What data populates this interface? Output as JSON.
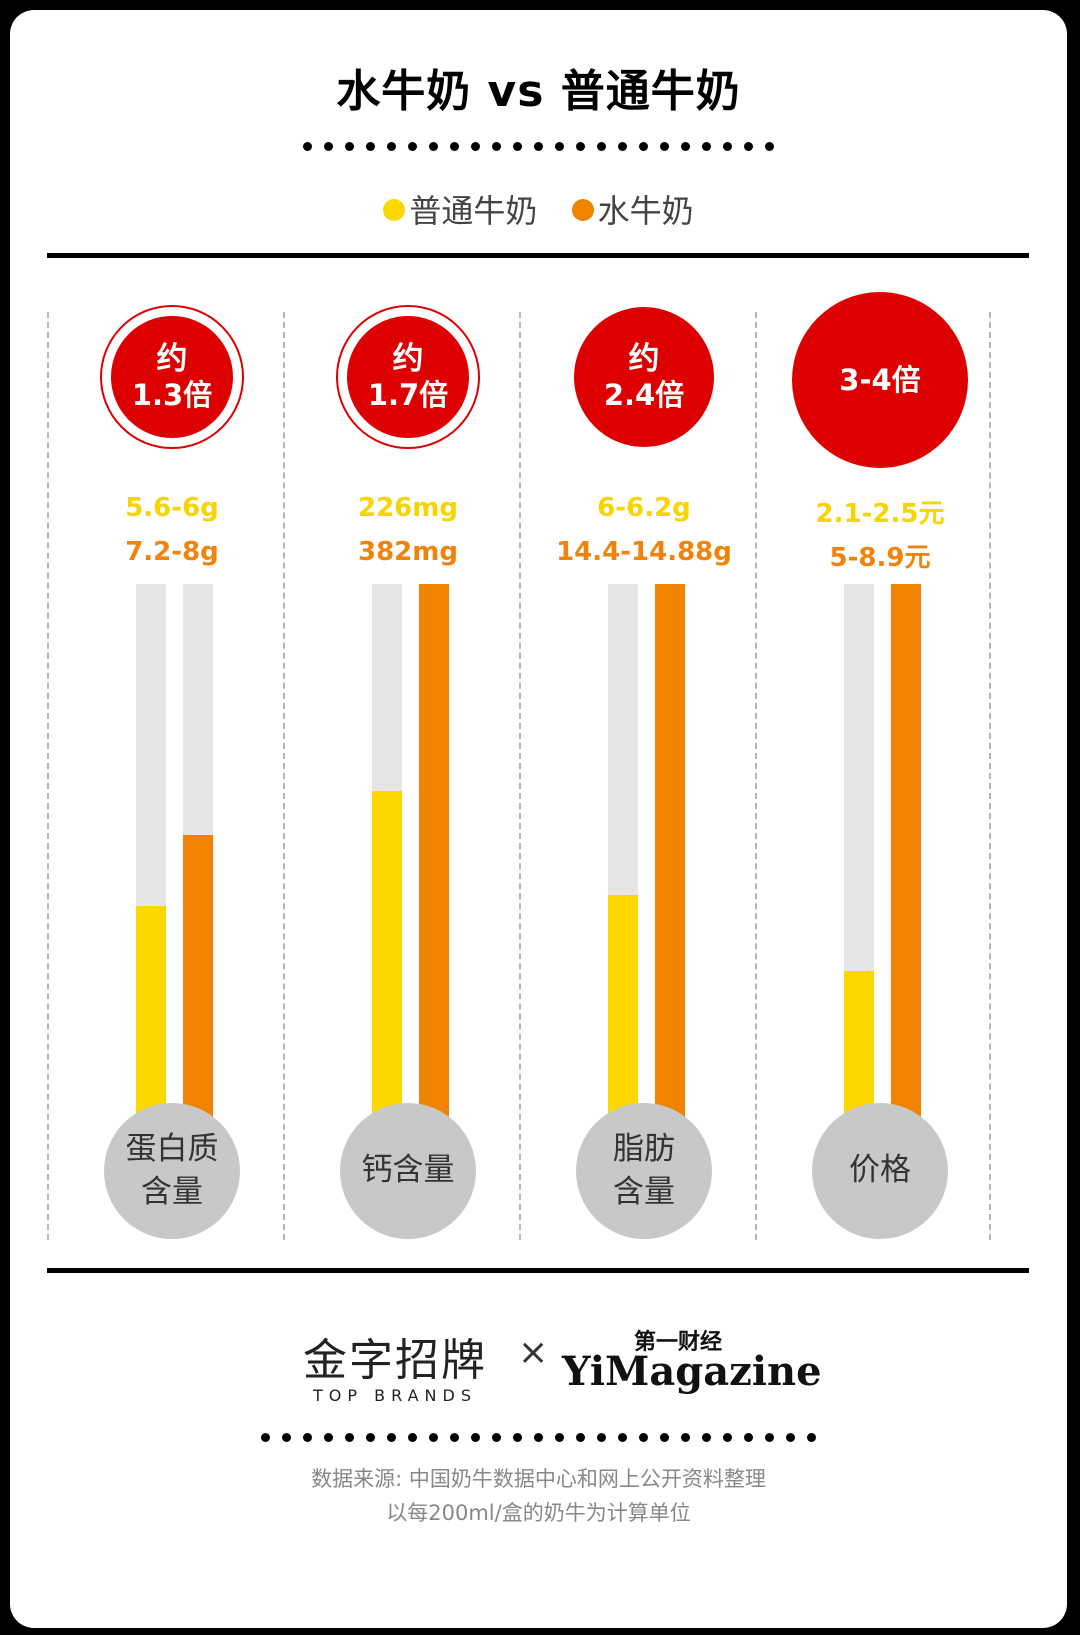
{
  "title": "水牛奶 vs 普通牛奶",
  "legend": [
    {
      "label": "普通牛奶",
      "color": "#fdd800"
    },
    {
      "label": "水牛奶",
      "color": "#f08400"
    }
  ],
  "chart_data": {
    "type": "bar",
    "categories": [
      "蛋白质\n含量",
      "钙含量",
      "脂肪\n含量",
      "价格"
    ],
    "series": [
      {
        "name": "普通牛奶",
        "values": [
          0.41,
          0.62,
          0.43,
          0.29
        ],
        "labels": [
          "5.6-6g",
          "226mg",
          "6-6.2g",
          "2.1-2.5元"
        ]
      },
      {
        "name": "水牛奶",
        "values": [
          0.54,
          1.0,
          1.0,
          1.0
        ],
        "labels": [
          "7.2-8g",
          "382mg",
          "14.4-14.88g",
          "5-8.9元"
        ]
      }
    ],
    "ratios": [
      {
        "line1": "约",
        "line2": "1.3倍"
      },
      {
        "line1": "约",
        "line2": "1.7倍"
      },
      {
        "line1": "约",
        "line2": "2.4倍"
      },
      {
        "line1": "",
        "line2": "3-4倍"
      }
    ]
  },
  "footer": {
    "brand_left_cn": "金字招牌",
    "brand_left_en": "TOP BRANDS",
    "times": "×",
    "brand_right_cn": "第一财经",
    "brand_right_en": "YiMagazine",
    "source_line1": "数据来源: 中国奶牛数据中心和网上公开资料整理",
    "source_line2": "以每200ml/盒的奶牛为计算单位"
  }
}
